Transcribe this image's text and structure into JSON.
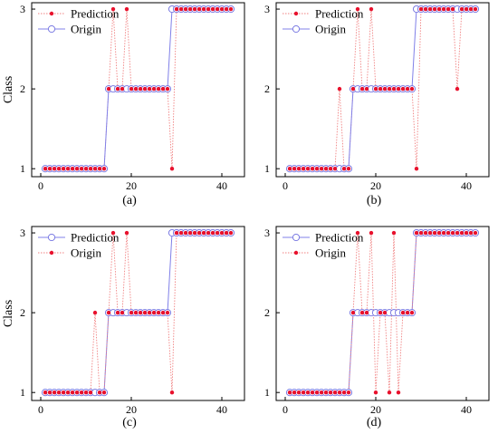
{
  "figure": {
    "panel_labels": [
      "(a)",
      "(b)",
      "(c)",
      "(d)"
    ]
  },
  "colors": {
    "prediction": "#e8112d",
    "origin": "#7070e0",
    "prediction_line": "#f08080",
    "origin_line": "#8080e8",
    "origin_marker_fill": "#ffffff"
  },
  "chart_data": [
    {
      "type": "line",
      "panel": "(a)",
      "ylabel": "Class",
      "xlim": [
        -2,
        45
      ],
      "ylim": [
        0.9,
        3.08
      ],
      "xticks": [
        0,
        20,
        40
      ],
      "yticks": [
        1,
        2,
        3
      ],
      "legend": {
        "placement": "top-left",
        "entries": [
          {
            "name": "Prediction",
            "style": "dot-dotted"
          },
          {
            "name": "Origin",
            "style": "circle-solid"
          }
        ]
      },
      "x": [
        1,
        2,
        3,
        4,
        5,
        6,
        7,
        8,
        9,
        10,
        11,
        12,
        13,
        14,
        15,
        16,
        17,
        18,
        19,
        20,
        21,
        22,
        23,
        24,
        25,
        26,
        27,
        28,
        29,
        30,
        31,
        32,
        33,
        34,
        35,
        36,
        37,
        38,
        39,
        40,
        41,
        42
      ],
      "series": [
        {
          "name": "Prediction",
          "style": "dot-dotted",
          "values": [
            1,
            1,
            1,
            1,
            1,
            1,
            1,
            1,
            1,
            1,
            1,
            1,
            1,
            1,
            2,
            3,
            2,
            2,
            3,
            2,
            2,
            2,
            2,
            2,
            2,
            2,
            2,
            2,
            1,
            3,
            3,
            3,
            3,
            3,
            3,
            3,
            3,
            3,
            3,
            3,
            3,
            3
          ]
        },
        {
          "name": "Origin",
          "style": "circle-solid",
          "values": [
            1,
            1,
            1,
            1,
            1,
            1,
            1,
            1,
            1,
            1,
            1,
            1,
            1,
            1,
            2,
            2,
            2,
            2,
            2,
            2,
            2,
            2,
            2,
            2,
            2,
            2,
            2,
            2,
            3,
            3,
            3,
            3,
            3,
            3,
            3,
            3,
            3,
            3,
            3,
            3,
            3,
            3
          ]
        }
      ]
    },
    {
      "type": "line",
      "panel": "(b)",
      "ylabel": "",
      "xlim": [
        -2,
        45
      ],
      "ylim": [
        0.9,
        3.08
      ],
      "xticks": [
        0,
        20,
        40
      ],
      "yticks": [
        1,
        2,
        3
      ],
      "legend": {
        "placement": "top-left",
        "entries": [
          {
            "name": "Prediction",
            "style": "dot-dotted"
          },
          {
            "name": "Origin",
            "style": "circle-solid"
          }
        ]
      },
      "x": [
        1,
        2,
        3,
        4,
        5,
        6,
        7,
        8,
        9,
        10,
        11,
        12,
        13,
        14,
        15,
        16,
        17,
        18,
        19,
        20,
        21,
        22,
        23,
        24,
        25,
        26,
        27,
        28,
        29,
        30,
        31,
        32,
        33,
        34,
        35,
        36,
        37,
        38,
        39,
        40,
        41,
        42
      ],
      "series": [
        {
          "name": "Prediction",
          "style": "dot-dotted",
          "values": [
            1,
            1,
            1,
            1,
            1,
            1,
            1,
            1,
            1,
            1,
            1,
            2,
            1,
            1,
            2,
            3,
            2,
            2,
            3,
            2,
            2,
            2,
            2,
            2,
            2,
            2,
            2,
            2,
            1,
            3,
            3,
            3,
            3,
            3,
            3,
            3,
            3,
            2,
            3,
            3,
            3,
            3
          ]
        },
        {
          "name": "Origin",
          "style": "circle-solid",
          "values": [
            1,
            1,
            1,
            1,
            1,
            1,
            1,
            1,
            1,
            1,
            1,
            1,
            1,
            1,
            2,
            2,
            2,
            2,
            2,
            2,
            2,
            2,
            2,
            2,
            2,
            2,
            2,
            2,
            3,
            3,
            3,
            3,
            3,
            3,
            3,
            3,
            3,
            3,
            3,
            3,
            3,
            3
          ]
        }
      ]
    },
    {
      "type": "line",
      "panel": "(c)",
      "ylabel": "Class",
      "xlim": [
        -2,
        45
      ],
      "ylim": [
        0.9,
        3.08
      ],
      "xticks": [
        0,
        20,
        40
      ],
      "yticks": [
        1,
        2,
        3
      ],
      "legend": {
        "placement": "top-left",
        "entries": [
          {
            "name": "Prediction",
            "style": "circle-solid"
          },
          {
            "name": "Origin",
            "style": "dot-dotted"
          }
        ]
      },
      "x": [
        1,
        2,
        3,
        4,
        5,
        6,
        7,
        8,
        9,
        10,
        11,
        12,
        13,
        14,
        15,
        16,
        17,
        18,
        19,
        20,
        21,
        22,
        23,
        24,
        25,
        26,
        27,
        28,
        29,
        30,
        31,
        32,
        33,
        34,
        35,
        36,
        37,
        38,
        39,
        40,
        41,
        42
      ],
      "series": [
        {
          "name": "Prediction",
          "style": "circle-solid",
          "values": [
            1,
            1,
            1,
            1,
            1,
            1,
            1,
            1,
            1,
            1,
            1,
            1,
            1,
            1,
            2,
            2,
            2,
            2,
            2,
            2,
            2,
            2,
            2,
            2,
            2,
            2,
            2,
            2,
            3,
            3,
            3,
            3,
            3,
            3,
            3,
            3,
            3,
            3,
            3,
            3,
            3,
            3
          ]
        },
        {
          "name": "Origin",
          "style": "dot-dotted",
          "values": [
            1,
            1,
            1,
            1,
            1,
            1,
            1,
            1,
            1,
            1,
            1,
            2,
            1,
            1,
            2,
            3,
            2,
            2,
            3,
            2,
            2,
            2,
            2,
            2,
            2,
            2,
            2,
            2,
            1,
            3,
            3,
            3,
            3,
            3,
            3,
            3,
            3,
            3,
            3,
            3,
            3,
            3
          ]
        }
      ]
    },
    {
      "type": "line",
      "panel": "(d)",
      "ylabel": "",
      "xlim": [
        -2,
        45
      ],
      "ylim": [
        0.9,
        3.08
      ],
      "xticks": [
        0,
        20,
        40
      ],
      "yticks": [
        1,
        2,
        3
      ],
      "legend": {
        "placement": "top-left",
        "entries": [
          {
            "name": "Prediction",
            "style": "circle-solid"
          },
          {
            "name": "Origin",
            "style": "dot-dotted"
          }
        ]
      },
      "x": [
        1,
        2,
        3,
        4,
        5,
        6,
        7,
        8,
        9,
        10,
        11,
        12,
        13,
        14,
        15,
        16,
        17,
        18,
        19,
        20,
        21,
        22,
        23,
        24,
        25,
        26,
        27,
        28,
        29,
        30,
        31,
        32,
        33,
        34,
        35,
        36,
        37,
        38,
        39,
        40,
        41,
        42
      ],
      "series": [
        {
          "name": "Prediction",
          "style": "circle-solid",
          "values": [
            1,
            1,
            1,
            1,
            1,
            1,
            1,
            1,
            1,
            1,
            1,
            1,
            1,
            1,
            2,
            2,
            2,
            2,
            2,
            2,
            2,
            2,
            2,
            2,
            2,
            2,
            2,
            2,
            3,
            3,
            3,
            3,
            3,
            3,
            3,
            3,
            3,
            3,
            3,
            3,
            3,
            3
          ]
        },
        {
          "name": "Origin",
          "style": "dot-dotted",
          "values": [
            1,
            1,
            1,
            1,
            1,
            1,
            1,
            1,
            1,
            1,
            1,
            1,
            1,
            1,
            2,
            3,
            2,
            2,
            3,
            1,
            2,
            2,
            1,
            3,
            1,
            2,
            2,
            2,
            3,
            3,
            3,
            3,
            3,
            3,
            3,
            3,
            3,
            3,
            3,
            3,
            3,
            3
          ]
        }
      ]
    }
  ]
}
